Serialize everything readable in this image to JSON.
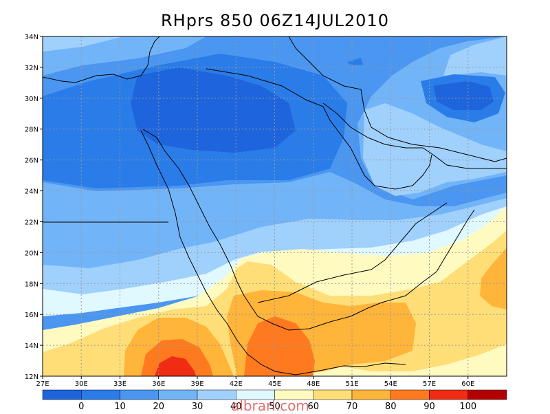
{
  "title": "RHprs 850 06Z14JUL2010",
  "map": {
    "lon_range": [
      27,
      63
    ],
    "lat_range": [
      12,
      34
    ],
    "grid": true,
    "lon_ticks": [
      "27E",
      "30E",
      "33E",
      "36E",
      "39E",
      "42E",
      "45E",
      "48E",
      "51E",
      "54E",
      "57E",
      "60E"
    ],
    "lat_ticks": [
      "12N",
      "14N",
      "16N",
      "18N",
      "20N",
      "22N",
      "24N",
      "26N",
      "28N",
      "30N",
      "32N",
      "34N"
    ],
    "field": "relative humidity (%) at 850 hPa",
    "max_region": "Ethiopian/Eritrean highlands near 37E 13N, values 90-100",
    "min_regions": [
      "northern Saudi Arabia / Iraq 28-31N, values 0-10",
      "southern Iran near 55E 30N, values 0-10"
    ]
  },
  "colorbar": {
    "labels": [
      "0",
      "10",
      "20",
      "30",
      "40",
      "50",
      "60",
      "70",
      "80",
      "90",
      "100"
    ],
    "colors": [
      "#1e64dc",
      "#2a7ce8",
      "#4a96f0",
      "#72b4f8",
      "#a0d0fc",
      "#e0f8ff",
      "#fffac0",
      "#ffde78",
      "#ffb43a",
      "#ff7a1e",
      "#f02c14",
      "#b40000"
    ]
  },
  "watermark": "albrari.com"
}
